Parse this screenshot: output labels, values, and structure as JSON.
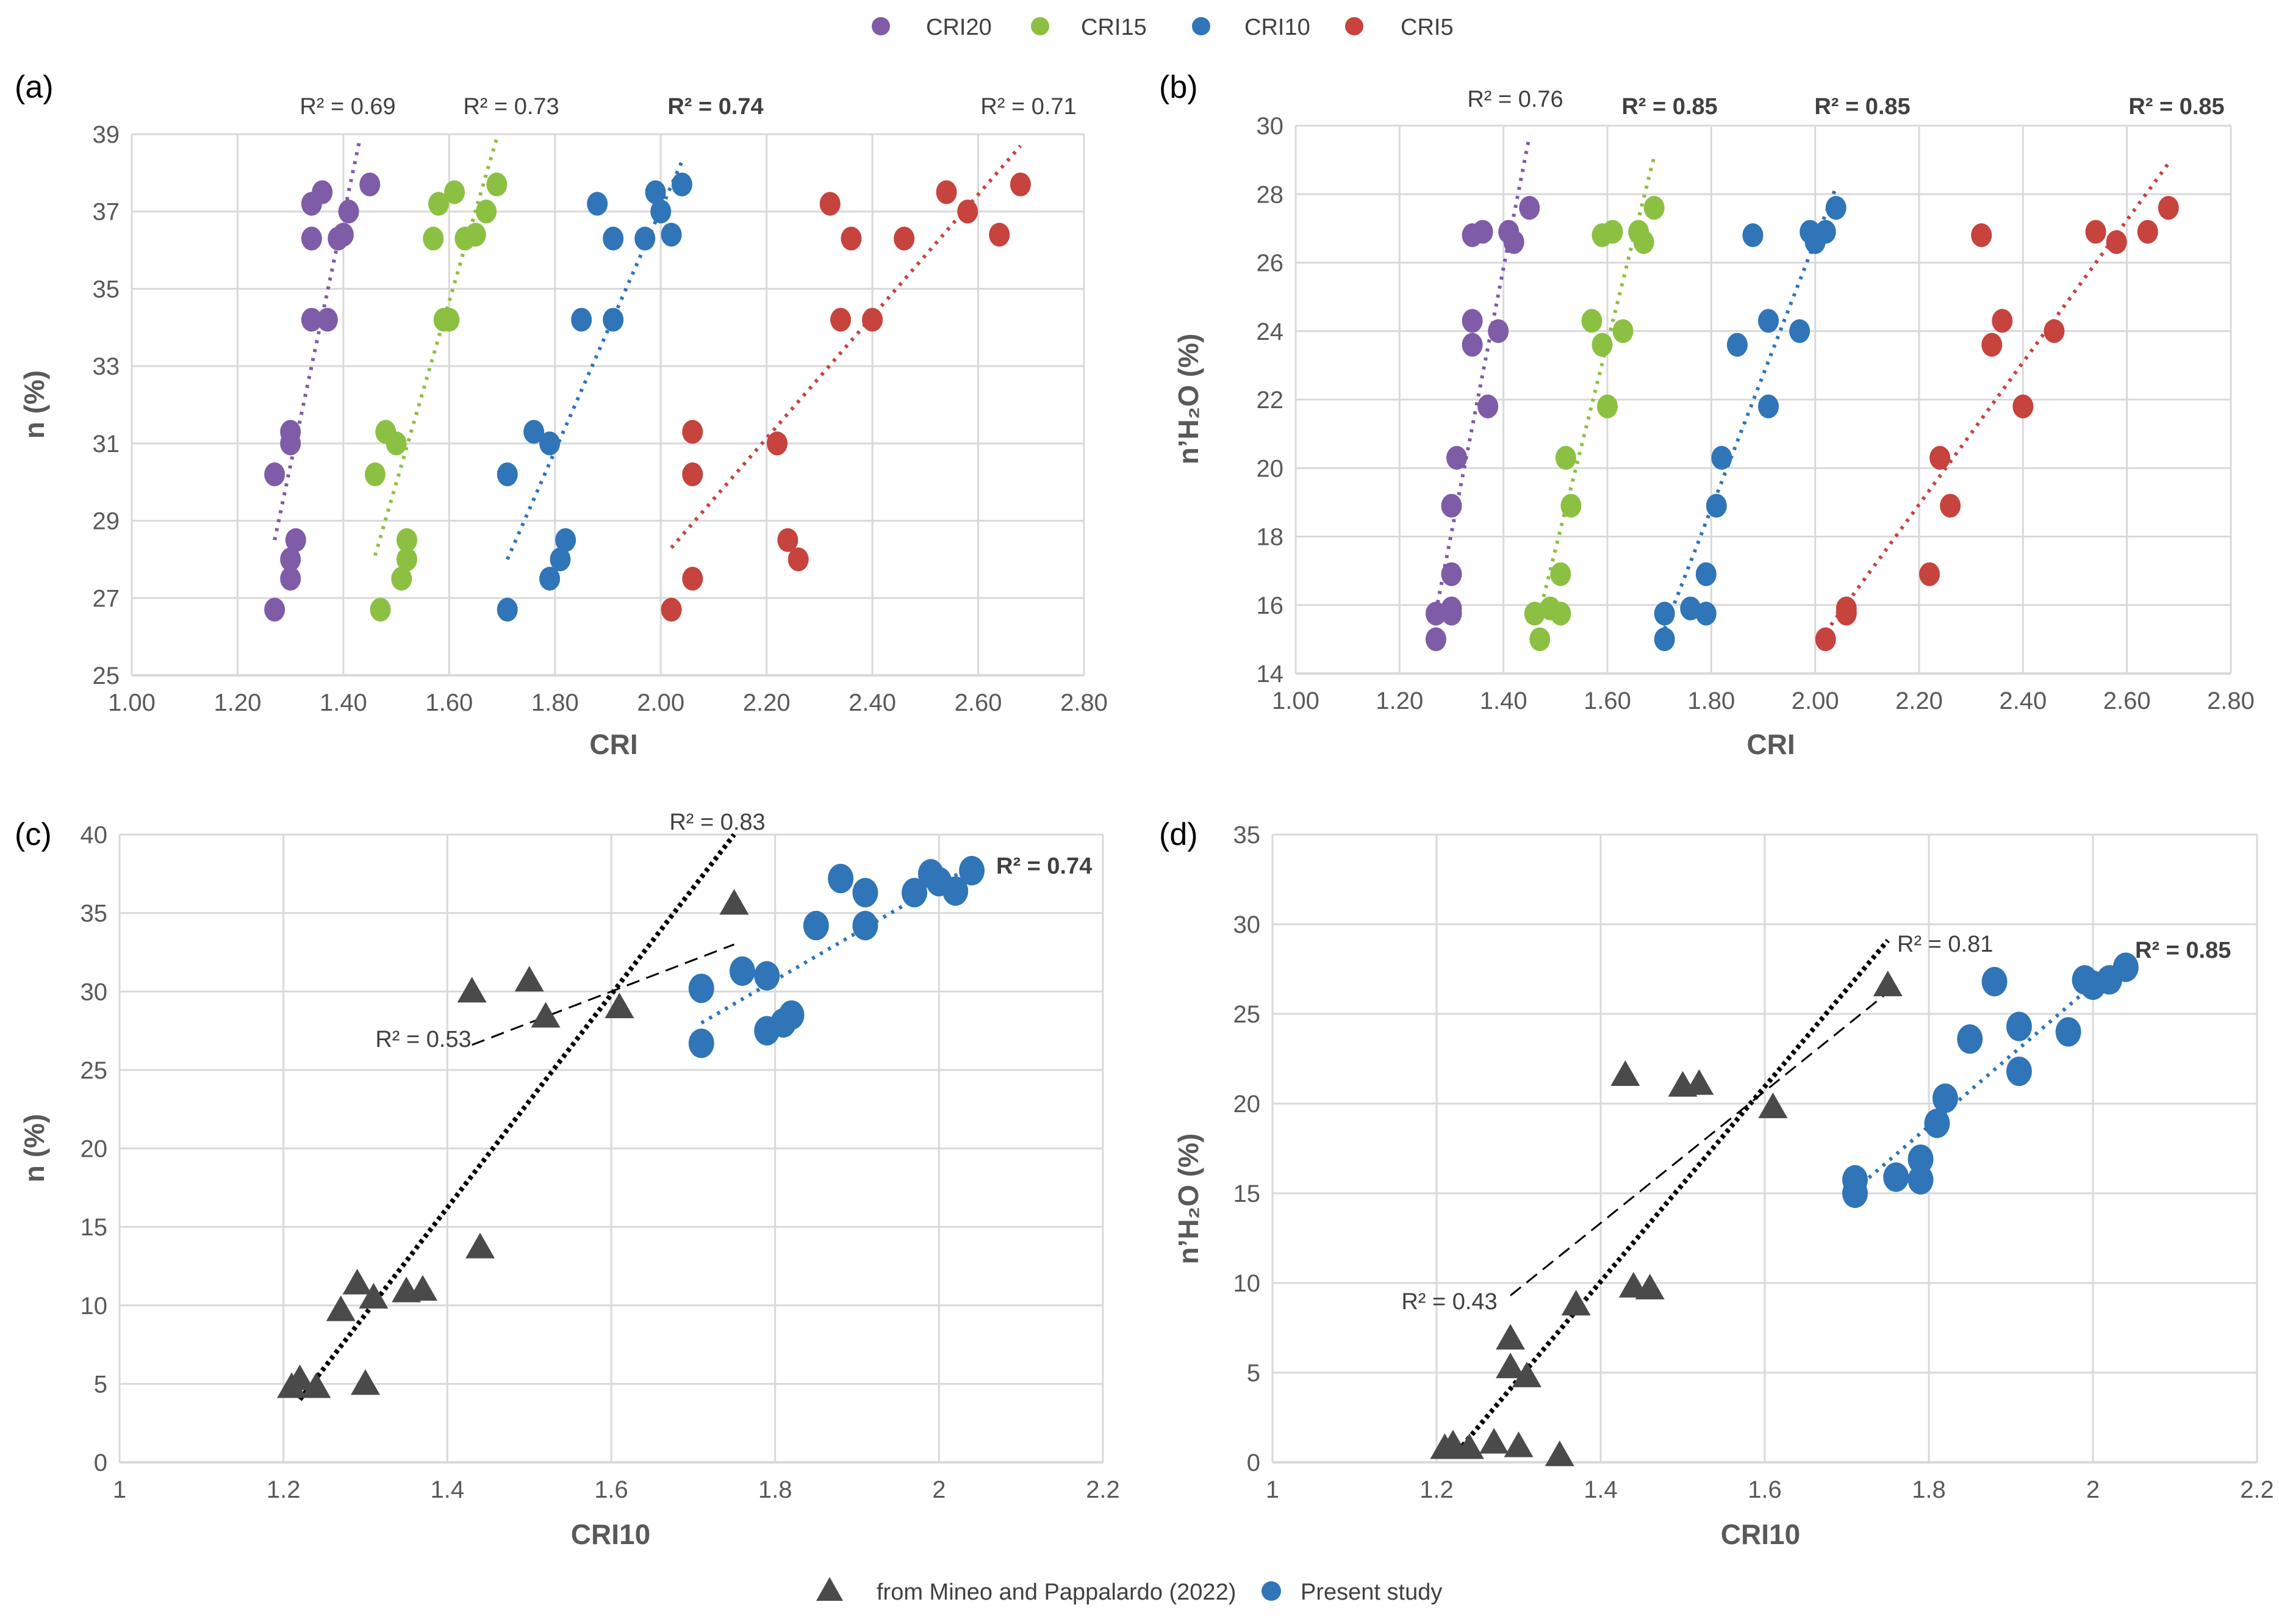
{
  "colors": {
    "CRI20": "#7E5CA8",
    "CRI15": "#8CC043",
    "CRI10": "#2F75B7",
    "CRI5": "#C6433E",
    "literature": "#4A4A4A"
  },
  "legend_top": [
    "CRI20",
    "CRI15",
    "CRI10",
    "CRI5"
  ],
  "legend_bottom": [
    "from Mineo and Pappalardo (2022)",
    "Present study"
  ],
  "chart_data": [
    {
      "panel": "(a)",
      "type": "scatter",
      "xlabel": "CRI",
      "ylabel": "n (%)",
      "xlim": [
        1.0,
        2.8
      ],
      "ylim": [
        25,
        39
      ],
      "xstep": 0.2,
      "ystep": 2,
      "xdec": 2,
      "grid": true,
      "series": [
        {
          "name": "CRI20",
          "marker": "circle",
          "x": [
            1.27,
            1.3,
            1.3,
            1.31,
            1.27,
            1.3,
            1.3,
            1.34,
            1.37,
            1.34,
            1.39,
            1.4,
            1.41,
            1.34,
            1.36,
            1.45
          ],
          "y": [
            26.7,
            27.5,
            28.0,
            28.5,
            30.2,
            31.0,
            31.3,
            34.2,
            34.2,
            36.3,
            36.3,
            36.4,
            37.0,
            37.2,
            37.5,
            37.7
          ],
          "trend": [
            [
              1.27,
              28.5
            ],
            [
              1.43,
              38.8
            ]
          ],
          "r2": "R² = 0.69",
          "r2_bold": false
        },
        {
          "name": "CRI15",
          "marker": "circle",
          "x": [
            1.47,
            1.51,
            1.52,
            1.52,
            1.46,
            1.5,
            1.48,
            1.59,
            1.6,
            1.57,
            1.63,
            1.65,
            1.67,
            1.58,
            1.61,
            1.69
          ],
          "y": [
            26.7,
            27.5,
            28.0,
            28.5,
            30.2,
            31.0,
            31.3,
            34.2,
            34.2,
            36.3,
            36.3,
            36.4,
            37.0,
            37.2,
            37.5,
            37.7
          ],
          "trend": [
            [
              1.46,
              28.1
            ],
            [
              1.69,
              38.9
            ]
          ],
          "r2": "R² = 0.73",
          "r2_bold": false
        },
        {
          "name": "CRI10",
          "marker": "circle",
          "x": [
            1.71,
            1.79,
            1.81,
            1.82,
            1.71,
            1.79,
            1.76,
            1.85,
            1.91,
            1.91,
            1.97,
            2.02,
            2.0,
            1.88,
            1.99,
            2.04
          ],
          "y": [
            26.7,
            27.5,
            28.0,
            28.5,
            30.2,
            31.0,
            31.3,
            34.2,
            34.2,
            36.3,
            36.3,
            36.4,
            37.0,
            37.2,
            37.5,
            37.7
          ],
          "trend": [
            [
              1.71,
              28.0
            ],
            [
              2.04,
              38.3
            ]
          ],
          "r2": "R² = 0.74",
          "r2_bold": true
        },
        {
          "name": "CRI5",
          "marker": "circle",
          "x": [
            2.02,
            2.06,
            2.26,
            2.24,
            2.06,
            2.22,
            2.06,
            2.34,
            2.4,
            2.36,
            2.46,
            2.64,
            2.58,
            2.32,
            2.54,
            2.68
          ],
          "y": [
            26.7,
            27.5,
            28.0,
            28.5,
            30.2,
            31.0,
            31.3,
            34.2,
            34.2,
            36.3,
            36.3,
            36.4,
            37.0,
            37.2,
            37.5,
            37.7
          ],
          "trend": [
            [
              2.02,
              28.3
            ],
            [
              2.68,
              38.7
            ]
          ],
          "r2": "R² = 0.71",
          "r2_bold": false
        }
      ]
    },
    {
      "panel": "(b)",
      "type": "scatter",
      "xlabel": "CRI",
      "ylabel": "n’H₂O (%)",
      "xlim": [
        1.0,
        2.8
      ],
      "ylim": [
        14,
        30
      ],
      "xstep": 0.2,
      "ystep": 2,
      "xdec": 2,
      "grid": true,
      "series": [
        {
          "name": "CRI20",
          "marker": "circle",
          "x": [
            1.27,
            1.27,
            1.3,
            1.3,
            1.3,
            1.3,
            1.31,
            1.37,
            1.34,
            1.39,
            1.34,
            1.42,
            1.34,
            1.36,
            1.41,
            1.45
          ],
          "y": [
            15.0,
            15.75,
            15.75,
            15.9,
            16.9,
            18.9,
            20.3,
            21.8,
            23.6,
            24.0,
            24.3,
            26.6,
            26.8,
            26.9,
            26.9,
            27.6
          ],
          "trend": [
            [
              1.27,
              15.8
            ],
            [
              1.45,
              29.7
            ]
          ],
          "r2": "R² = 0.76",
          "r2_bold": false
        },
        {
          "name": "CRI15",
          "marker": "circle",
          "x": [
            1.47,
            1.46,
            1.51,
            1.49,
            1.51,
            1.53,
            1.52,
            1.6,
            1.59,
            1.63,
            1.57,
            1.67,
            1.59,
            1.61,
            1.66,
            1.69
          ],
          "y": [
            15.0,
            15.75,
            15.75,
            15.9,
            16.9,
            18.9,
            20.3,
            21.8,
            23.6,
            24.0,
            24.3,
            26.6,
            26.8,
            26.9,
            26.9,
            27.6
          ],
          "trend": [
            [
              1.46,
              15.2
            ],
            [
              1.69,
              29.1
            ]
          ],
          "r2": "R² = 0.85",
          "r2_bold": true
        },
        {
          "name": "CRI10",
          "marker": "circle",
          "x": [
            1.71,
            1.71,
            1.79,
            1.76,
            1.79,
            1.81,
            1.82,
            1.91,
            1.85,
            1.97,
            1.91,
            2.0,
            1.88,
            1.99,
            2.02,
            2.04
          ],
          "y": [
            15.0,
            15.75,
            15.75,
            15.9,
            16.9,
            18.9,
            20.3,
            21.8,
            23.6,
            24.0,
            24.3,
            26.6,
            26.8,
            26.9,
            26.9,
            27.6
          ],
          "trend": [
            [
              1.71,
              15.3
            ],
            [
              2.04,
              28.2
            ]
          ],
          "r2": "R² = 0.85",
          "r2_bold": true
        },
        {
          "name": "CRI5",
          "marker": "circle",
          "x": [
            2.02,
            2.06,
            2.06,
            2.06,
            2.22,
            2.26,
            2.24,
            2.4,
            2.34,
            2.46,
            2.36,
            2.58,
            2.32,
            2.54,
            2.64,
            2.68
          ],
          "y": [
            15.0,
            15.75,
            15.8,
            15.9,
            16.9,
            18.9,
            20.3,
            21.8,
            23.6,
            24.0,
            24.3,
            26.6,
            26.8,
            26.9,
            26.9,
            27.6
          ],
          "trend": [
            [
              2.02,
              15.2
            ],
            [
              2.68,
              28.9
            ]
          ],
          "r2": "R² = 0.85",
          "r2_bold": true
        }
      ]
    },
    {
      "panel": "(c)",
      "type": "scatter",
      "xlabel": "CRI10",
      "ylabel": "n (%)",
      "xlim": [
        1.0,
        2.2
      ],
      "ylim": [
        0,
        40
      ],
      "xstep": 0.2,
      "ystep": 5,
      "xdec": 1,
      "grid": true,
      "series": [
        {
          "name": "from Mineo and Pappalardo (2022)",
          "marker": "triangle",
          "x": [
            1.21,
            1.22,
            1.24,
            1.3,
            1.27,
            1.29,
            1.31,
            1.35,
            1.37,
            1.44,
            1.43,
            1.5,
            1.52,
            1.61,
            1.75
          ],
          "y": [
            4.8,
            5.3,
            4.8,
            5.0,
            9.7,
            11.4,
            10.5,
            10.9,
            11.0,
            13.7,
            30.0,
            30.7,
            28.4,
            29.0,
            35.6
          ],
          "trend": [
            [
              1.22,
              4.0
            ],
            [
              1.75,
              40.0
            ]
          ],
          "trend_style": "dotted",
          "r2": "R² = 0.83",
          "r2_bold": false,
          "trend2": [
            [
              1.43,
              26.6
            ],
            [
              1.75,
              33.0
            ]
          ],
          "r2_2": "R² = 0.53"
        },
        {
          "name": "Present study",
          "marker": "circle",
          "x": [
            1.71,
            1.79,
            1.81,
            1.82,
            1.71,
            1.79,
            1.76,
            1.85,
            1.91,
            1.91,
            1.97,
            2.02,
            2.0,
            1.88,
            1.99,
            2.04
          ],
          "y": [
            26.7,
            27.5,
            28.0,
            28.5,
            30.2,
            31.0,
            31.3,
            34.2,
            34.2,
            36.3,
            36.3,
            36.4,
            37.0,
            37.2,
            37.5,
            37.7
          ],
          "trend": [
            [
              1.71,
              28.0
            ],
            [
              2.04,
              38.0
            ]
          ],
          "r2": "R² = 0.74",
          "r2_bold": true
        }
      ]
    },
    {
      "panel": "(d)",
      "type": "scatter",
      "xlabel": "CRI10",
      "ylabel": "n’H₂O (%)",
      "xlim": [
        1.0,
        2.2
      ],
      "ylim": [
        0,
        35
      ],
      "xstep": 0.2,
      "ystep": 5,
      "xdec": 1,
      "grid": true,
      "series": [
        {
          "name": "from Mineo and Pappalardo (2022)",
          "marker": "triangle",
          "x": [
            1.21,
            1.22,
            1.24,
            1.27,
            1.3,
            1.35,
            1.29,
            1.29,
            1.31,
            1.37,
            1.44,
            1.46,
            1.43,
            1.5,
            1.52,
            1.61,
            1.75
          ],
          "y": [
            0.8,
            1.0,
            0.8,
            1.1,
            0.9,
            0.4,
            6.9,
            5.3,
            4.8,
            8.8,
            9.8,
            9.7,
            21.6,
            21.0,
            21.1,
            19.8,
            26.6
          ],
          "trend": [
            [
              1.22,
              0.3
            ],
            [
              1.75,
              29.1
            ]
          ],
          "trend_style": "dotted",
          "r2": "R² = 0.81",
          "r2_bold": false,
          "trend2": [
            [
              1.29,
              9.3
            ],
            [
              1.75,
              26.2
            ]
          ],
          "r2_2": "R² = 0.43"
        },
        {
          "name": "Present study",
          "marker": "circle",
          "x": [
            1.71,
            1.71,
            1.79,
            1.76,
            1.79,
            1.81,
            1.82,
            1.91,
            1.85,
            1.97,
            1.91,
            2.0,
            1.88,
            1.99,
            2.02,
            2.04
          ],
          "y": [
            15.0,
            15.75,
            15.75,
            15.9,
            16.9,
            18.9,
            20.3,
            21.8,
            23.6,
            24.0,
            24.3,
            26.6,
            26.8,
            26.9,
            26.9,
            27.6
          ],
          "trend": [
            [
              1.71,
              15.2
            ],
            [
              2.04,
              28.2
            ]
          ],
          "r2": "R² = 0.85",
          "r2_bold": true
        }
      ]
    }
  ]
}
